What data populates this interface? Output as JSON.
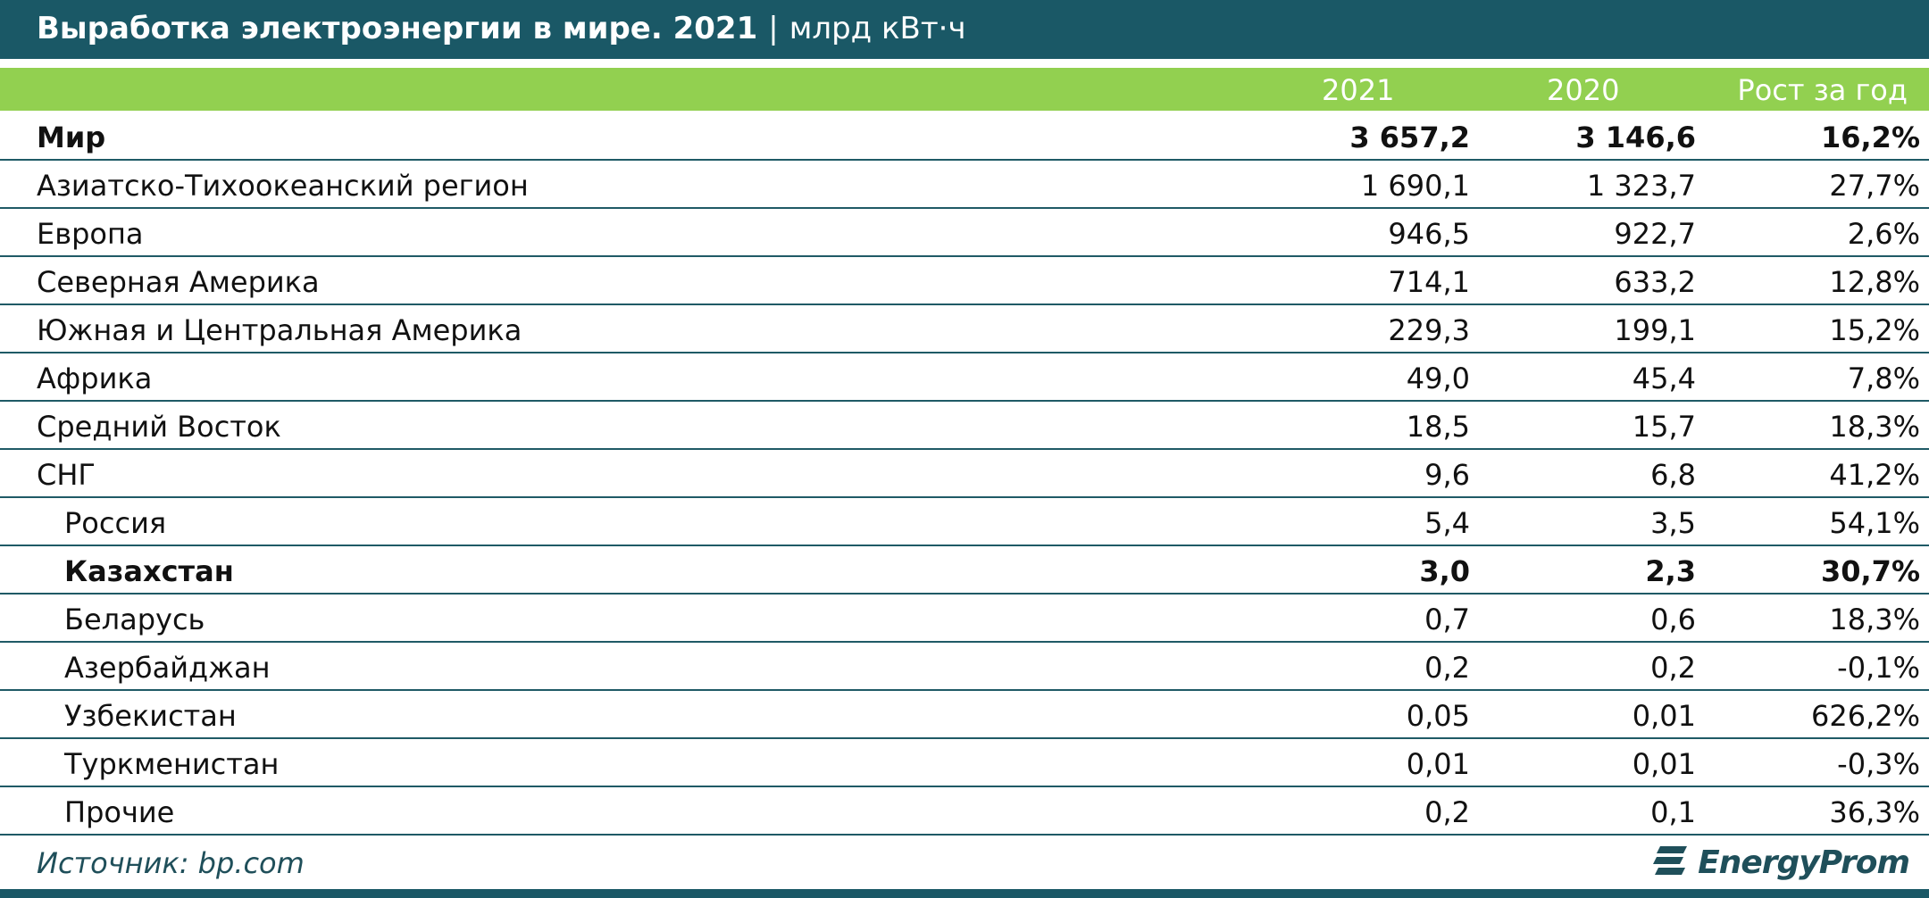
{
  "header": {
    "title": "Выработка электроэнергии в мире. 2021",
    "separator": "|",
    "unit": "млрд кВт·ч"
  },
  "table": {
    "columns": [
      "2021",
      "2020",
      "Рост за год"
    ],
    "rows": [
      {
        "label": "Мир",
        "cells": [
          "3 657,2",
          "3 146,6",
          "16,2%"
        ],
        "bold": true
      },
      {
        "label": "Азиатско-Тихоокеанский регион",
        "cells": [
          "1 690,1",
          "1 323,7",
          "27,7%"
        ]
      },
      {
        "label": "Европа",
        "cells": [
          "946,5",
          "922,7",
          "2,6%"
        ]
      },
      {
        "label": "Северная Америка",
        "cells": [
          "714,1",
          "633,2",
          "12,8%"
        ]
      },
      {
        "label": "Южная и Центральная Америка",
        "cells": [
          "229,3",
          "199,1",
          "15,2%"
        ]
      },
      {
        "label": "Африка",
        "cells": [
          "49,0",
          "45,4",
          "7,8%"
        ]
      },
      {
        "label": "Средний Восток",
        "cells": [
          "18,5",
          "15,7",
          "18,3%"
        ]
      },
      {
        "label": "СНГ",
        "cells": [
          "9,6",
          "6,8",
          "41,2%"
        ]
      },
      {
        "label": "Россия",
        "cells": [
          "5,4",
          "3,5",
          "54,1%"
        ],
        "indent": true
      },
      {
        "label": "Казахстан",
        "cells": [
          "3,0",
          "2,3",
          "30,7%"
        ],
        "indent": true,
        "bold": true
      },
      {
        "label": "Беларусь",
        "cells": [
          "0,7",
          "0,6",
          "18,3%"
        ],
        "indent": true
      },
      {
        "label": "Азербайджан",
        "cells": [
          "0,2",
          "0,2",
          "-0,1%"
        ],
        "indent": true
      },
      {
        "label": "Узбекистан",
        "cells": [
          "0,05",
          "0,01",
          "626,2%"
        ],
        "indent": true
      },
      {
        "label": "Туркменистан",
        "cells": [
          "0,01",
          "0,01",
          "-0,3%"
        ],
        "indent": true
      },
      {
        "label": "Прочие",
        "cells": [
          "0,2",
          "0,1",
          "36,3%"
        ],
        "indent": true
      }
    ]
  },
  "footer": {
    "source": "Источник: bp.com",
    "logo": "EnergyProm"
  }
}
